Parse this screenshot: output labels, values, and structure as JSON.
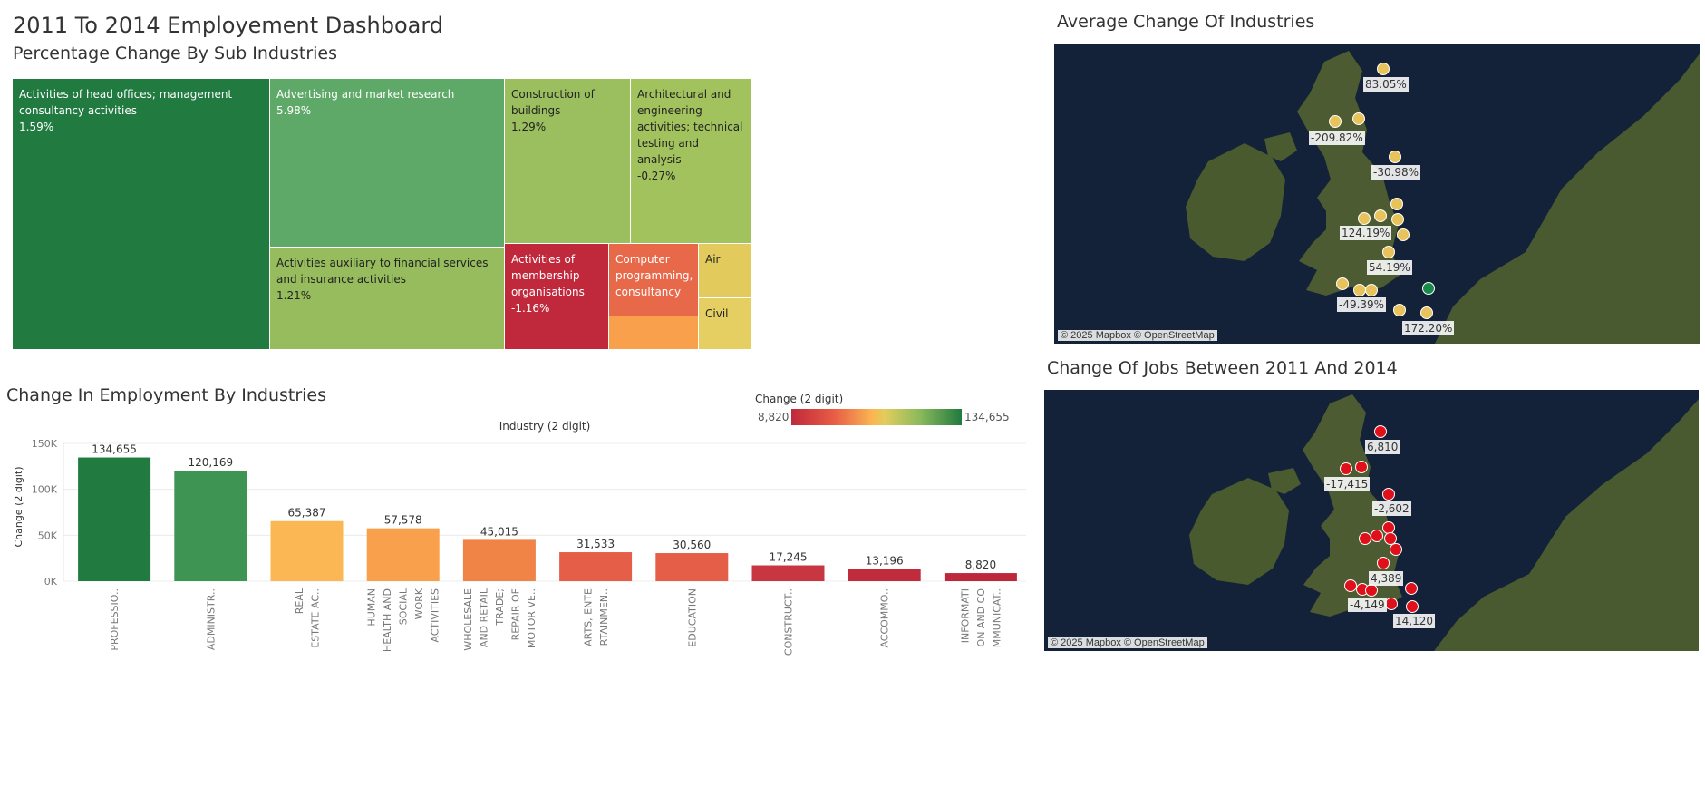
{
  "dashboard": {
    "title": "2011 To 2014 Employement Dashboard",
    "treemap_title": "Percentage Change By Sub Industries"
  },
  "treemap": {
    "tiles": [
      {
        "label": "Activities of head offices; management consultancy activities",
        "value": "1.59%",
        "color": "#217a40",
        "text_color": "#ffffff"
      },
      {
        "label": "Advertising and market research",
        "value": "5.98%",
        "color": "#5ea968",
        "text_color": "#ffffff"
      },
      {
        "label": "Construction of buildings",
        "value": "1.29%",
        "color": "#9bbf5f",
        "text_color": "#222222"
      },
      {
        "label": "Architectural and engineering activities; technical testing and analysis",
        "value": "-0.27%",
        "color": "#a2c25e",
        "text_color": "#222222"
      },
      {
        "label": "Activities auxiliary to financial services and insurance activities",
        "value": "1.21%",
        "color": "#96bc5e",
        "text_color": "#222222"
      },
      {
        "label": "Activities of membership organisations",
        "value": "-1.16%",
        "color": "#c0283c",
        "text_color": "#ffffff"
      },
      {
        "label": "Computer programming, consultancy",
        "value": "",
        "color": "#e8684a",
        "text_color": "#ffffff"
      },
      {
        "label": "",
        "value": "",
        "color": "#f9a04c",
        "text_color": "#222222"
      },
      {
        "label": "Air",
        "value": "",
        "color": "#e2cb5c",
        "text_color": "#222222"
      },
      {
        "label": "Civil",
        "value": "",
        "color": "#e6cf62",
        "text_color": "#222222"
      }
    ]
  },
  "bar_panel": {
    "title": "Change In Employment By Industries",
    "legend_title": "Change (2 digit)",
    "legend_min": "8,820",
    "legend_max": "134,655"
  },
  "chart_data": {
    "type": "bar",
    "title": "Industry (2 digit)",
    "ylabel": "Change (2 digit)",
    "xlabel": "",
    "ylim": [
      0,
      150000
    ],
    "y_ticks": [
      {
        "v": 0,
        "label": "0K"
      },
      {
        "v": 50000,
        "label": "50K"
      },
      {
        "v": 100000,
        "label": "100K"
      },
      {
        "v": 150000,
        "label": "150K"
      }
    ],
    "categories": [
      [
        "PROFESSIO.."
      ],
      [
        "ADMINISTR.."
      ],
      [
        "REAL",
        "ESTATE AC.."
      ],
      [
        "HUMAN",
        "HEALTH AND",
        "SOCIAL",
        "WORK",
        "ACTIVITIES"
      ],
      [
        "WHOLESALE",
        "AND RETAIL",
        "TRADE;",
        "REPAIR OF",
        "MOTOR VE.."
      ],
      [
        "ARTS, ENTE",
        "RTAINMEN.."
      ],
      [
        "EDUCATION"
      ],
      [
        "CONSTRUCT.."
      ],
      [
        "ACCOMMO.."
      ],
      [
        "INFORMATI",
        "ON AND CO",
        "MMUNICAT.."
      ]
    ],
    "values": [
      134655,
      120169,
      65387,
      57578,
      45015,
      31533,
      30560,
      17245,
      13196,
      8820
    ],
    "value_labels": [
      "134,655",
      "120,169",
      "65,387",
      "57,578",
      "45,015",
      "31,533",
      "30,560",
      "17,245",
      "13,196",
      "8,820"
    ],
    "colors": [
      "#217a40",
      "#3e9452",
      "#fbb753",
      "#f9a04c",
      "#f08447",
      "#e55e47",
      "#e55e47",
      "#c83641",
      "#c02c3c",
      "#bd283a"
    ]
  },
  "map_avg": {
    "title": "Average Change Of Industries",
    "attribution": "© 2025 Mapbox © OpenStreetMap",
    "labels": [
      "83.05%",
      "-209.82%",
      "-30.98%",
      "124.19%",
      "54.19%",
      "-49.39%",
      "172.20%"
    ]
  },
  "map_jobs": {
    "title": "Change Of Jobs Between 2011 And 2014",
    "attribution": "© 2025 Mapbox © OpenStreetMap",
    "labels": [
      "6,810",
      "-17,415",
      "-2,602",
      "4,389",
      "-4,149",
      "14,120"
    ]
  },
  "colors": {
    "sea": "#132238",
    "land": "#4a5a30",
    "dot_yellow": "#e8c35b",
    "dot_red": "#e0101a",
    "dot_green": "#1a8a4a"
  }
}
